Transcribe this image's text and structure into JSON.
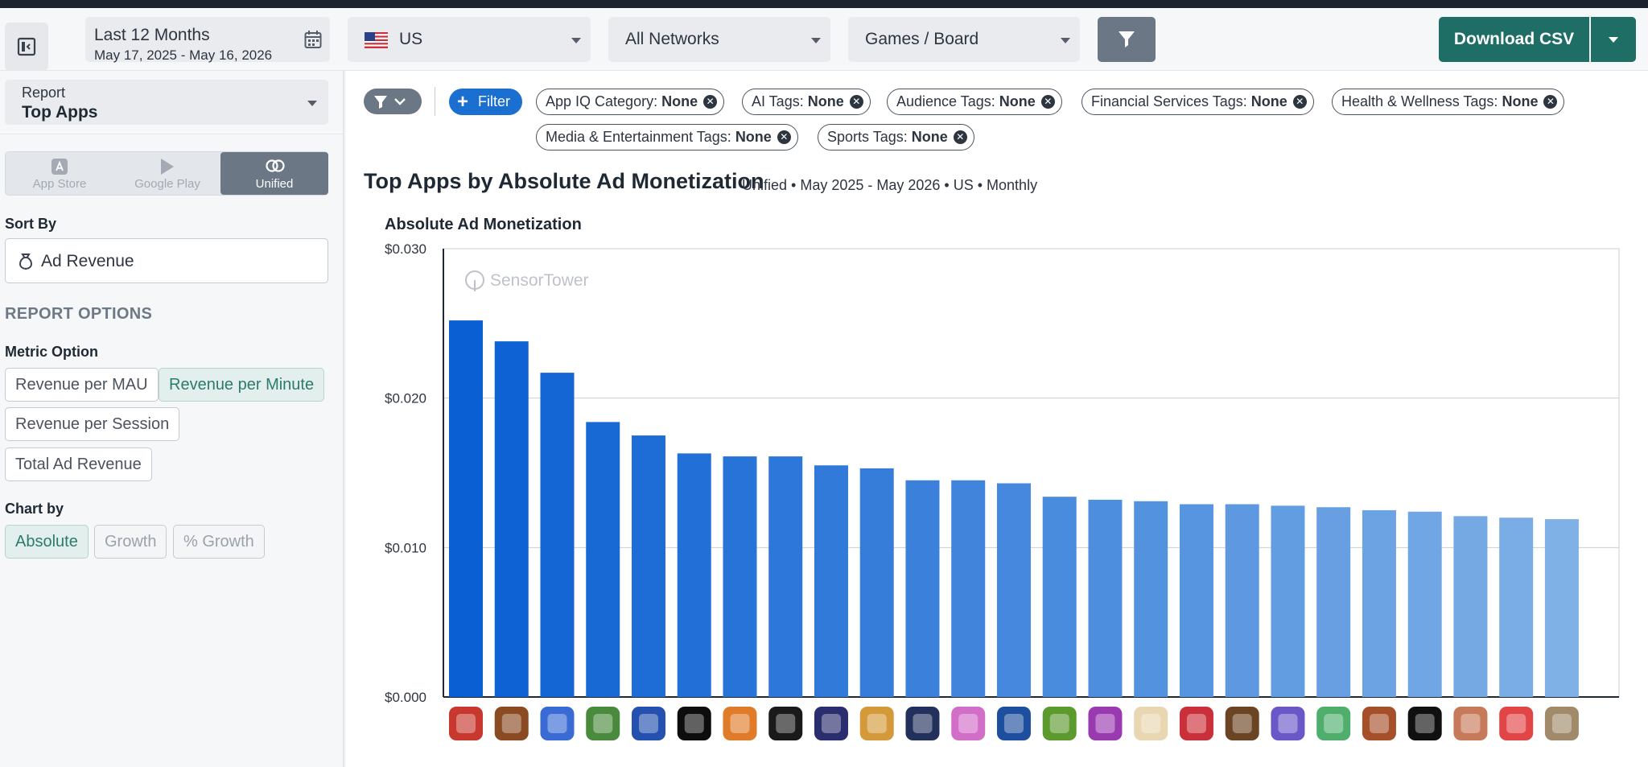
{
  "date_range": {
    "label": "Last 12 Months",
    "dates": "May 17, 2025 - May 16, 2026"
  },
  "country": {
    "label": "US",
    "icon": "us-flag-icon"
  },
  "networks": {
    "label": "All Networks"
  },
  "category": {
    "label": "Games / Board"
  },
  "download": {
    "label": "Download CSV"
  },
  "report": {
    "label": "Report",
    "value": "Top Apps"
  },
  "platforms": [
    {
      "label": "App Store",
      "icon": "app-store-icon"
    },
    {
      "label": "Google Play",
      "icon": "google-play-icon"
    },
    {
      "label": "Unified",
      "icon": "unified-icon",
      "active": true
    }
  ],
  "sort_by": {
    "label": "Sort By",
    "value": "Ad Revenue",
    "icon": "money-bag-icon"
  },
  "report_options": {
    "label": "REPORT OPTIONS"
  },
  "metric_option": {
    "label": "Metric Option",
    "options": [
      "Revenue per MAU",
      "Revenue per Minute",
      "Revenue per Session",
      "Total Ad Revenue"
    ],
    "selected": "Revenue per Minute"
  },
  "chart_by": {
    "label": "Chart by",
    "options": [
      "Absolute",
      "Growth",
      "% Growth"
    ],
    "selected": "Absolute"
  },
  "filters": {
    "add_label": "Filter",
    "chips": [
      {
        "name": "App IQ Category:",
        "value": "None"
      },
      {
        "name": "AI Tags:",
        "value": "None"
      },
      {
        "name": "Audience Tags:",
        "value": "None"
      },
      {
        "name": "Financial Services Tags:",
        "value": "None"
      },
      {
        "name": "Health & Wellness Tags:",
        "value": "None"
      },
      {
        "name": "Media & Entertainment Tags:",
        "value": "None"
      },
      {
        "name": "Sports Tags:",
        "value": "None"
      }
    ]
  },
  "chart_header": {
    "title": "Top Apps by Absolute Ad Monetization",
    "subtitle": "Unified • May 2025 - May 2026 • US • Monthly"
  },
  "chart_data": {
    "type": "bar",
    "title": "Absolute Ad Monetization",
    "xlabel": "",
    "ylabel": "",
    "watermark": "SensorTower",
    "ylim": [
      0,
      0.03
    ],
    "y_ticks": [
      "$0.000",
      "$0.010",
      "$0.020",
      "$0.030"
    ],
    "grid": true,
    "colors": {
      "start": "#0a5fd3",
      "end": "#7fb0e6"
    },
    "categories": [
      "app-1",
      "app-2",
      "app-3",
      "app-4",
      "app-5",
      "app-6",
      "app-7",
      "app-8",
      "app-9",
      "app-10",
      "app-11",
      "app-12",
      "app-13",
      "app-14",
      "app-15",
      "app-16",
      "app-17",
      "app-18",
      "app-19",
      "app-20",
      "app-21",
      "app-22",
      "app-23",
      "app-24",
      "app-25",
      "app-26"
    ],
    "values": [
      0.0252,
      0.0238,
      0.0217,
      0.0184,
      0.0175,
      0.0163,
      0.0161,
      0.0161,
      0.0155,
      0.0153,
      0.0145,
      0.0145,
      0.0143,
      0.0134,
      0.0132,
      0.0131,
      0.0129,
      0.0129,
      0.0128,
      0.0127,
      0.0125,
      0.0124,
      0.0121,
      0.012,
      0.0119,
      0.0
    ],
    "app_icon_colors": [
      "#c8382f",
      "#8a4a22",
      "#3a6ad4",
      "#4a8a3c",
      "#2450b0",
      "#0d0d0d",
      "#e07b2a",
      "#1a1a1a",
      "#2a2d6e",
      "#d49a3a",
      "#23305c",
      "#d26ec8",
      "#1e4f9e",
      "#5d9a2e",
      "#9a3ab0",
      "#e8d7b0",
      "#c9303a",
      "#6b4424",
      "#6a58c8",
      "#4fae6c",
      "#a6502a",
      "#101010",
      "#c77a5a",
      "#e24545",
      "#a08a6a"
    ]
  }
}
